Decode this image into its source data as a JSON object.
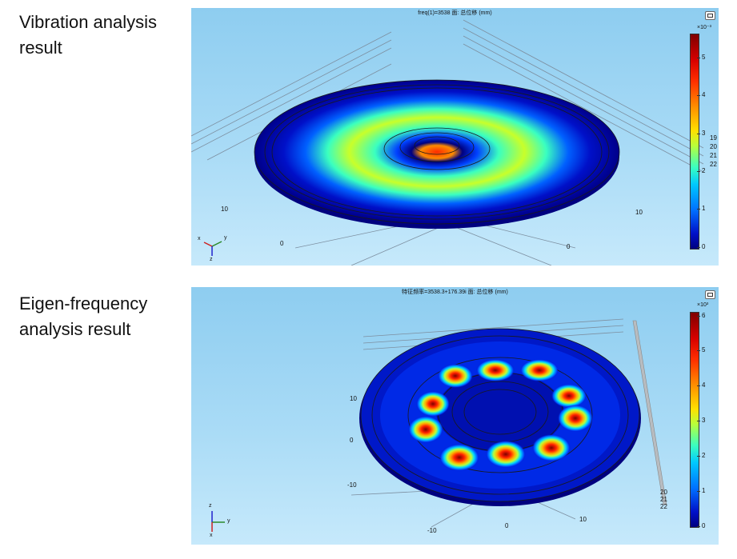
{
  "captions": {
    "vibration": [
      "Vibration analysis",
      "result"
    ],
    "eigen": [
      "Eigen-frequency",
      "analysis result"
    ]
  },
  "panel1": {
    "title": "freq(1)=3538   面: 总位移 (mm)",
    "colorbar": {
      "exponent": "×10⁻³",
      "ticks": [
        "5",
        "4",
        "3",
        "2",
        "1",
        "0"
      ],
      "color_min": "#00007f",
      "color_max": "#7f0000"
    },
    "side_labels": [
      "19",
      "20",
      "21",
      "22"
    ],
    "axis_ticks": [
      "10",
      "10",
      "0",
      "0"
    ],
    "triad": {
      "x": "x",
      "y": "y",
      "z": "z"
    }
  },
  "panel2": {
    "title": "特征频率=3538.3+176.39i   面: 总位移 (mm)",
    "colorbar": {
      "exponent": "×10³",
      "ticks": [
        "6",
        "5",
        "4",
        "3",
        "2",
        "1",
        "0"
      ],
      "color_min": "#00007f",
      "color_max": "#7f0000"
    },
    "side_labels": [
      "20",
      "21",
      "22"
    ],
    "axis_ticks_y": [
      "10",
      "0",
      "-10"
    ],
    "axis_ticks_x": [
      "-10",
      "0",
      "10"
    ],
    "triad": {
      "x": "x",
      "y": "y",
      "z": "z"
    }
  }
}
